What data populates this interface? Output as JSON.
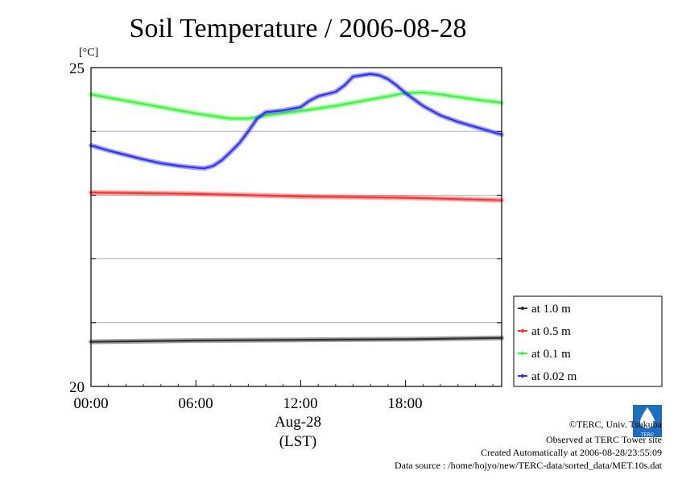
{
  "chart_data": {
    "type": "line",
    "title": "Soil Temperature / 2006-08-28",
    "ylabel": "[°C]",
    "xlabel": "(LST)",
    "date_label": "Aug-28",
    "ylim": [
      20,
      25
    ],
    "xlim_hours": [
      0,
      23.5
    ],
    "y_ticks": [
      "25",
      "20"
    ],
    "y_gridlines": [
      21,
      22,
      23,
      24
    ],
    "x_ticks": [
      {
        "hour": 0,
        "label": "00:00"
      },
      {
        "hour": 6,
        "label": "06:00"
      },
      {
        "hour": 12,
        "label": "12:00"
      },
      {
        "hour": 18,
        "label": "18:00"
      }
    ],
    "grid": true,
    "legend_position": "right",
    "series": [
      {
        "name": "at 1.0 m",
        "color": "#303030",
        "x": [
          0,
          6,
          12,
          18,
          23.5
        ],
        "y": [
          20.7,
          20.72,
          20.73,
          20.74,
          20.76
        ]
      },
      {
        "name": "at 0.5 m",
        "color": "#ff3030",
        "x": [
          0,
          3,
          6,
          9,
          12,
          15,
          18,
          21,
          23.5
        ],
        "y": [
          23.04,
          23.03,
          23.02,
          23.0,
          22.98,
          22.97,
          22.96,
          22.94,
          22.92
        ]
      },
      {
        "name": "at 0.1 m",
        "color": "#30ff30",
        "x": [
          0,
          2,
          4,
          6,
          8,
          9,
          10,
          12,
          14,
          16,
          18,
          19,
          20,
          22,
          23.5
        ],
        "y": [
          24.58,
          24.48,
          24.38,
          24.28,
          24.2,
          24.2,
          24.25,
          24.32,
          24.4,
          24.5,
          24.6,
          24.61,
          24.58,
          24.5,
          24.45
        ]
      },
      {
        "name": "at 0.02 m",
        "color": "#3030ff",
        "x": [
          0,
          1,
          2,
          3,
          4,
          5,
          6,
          6.5,
          7,
          7.5,
          8,
          8.5,
          9,
          9.5,
          10,
          11,
          12,
          12.5,
          13,
          14,
          14.5,
          15,
          15.5,
          16,
          16.5,
          17,
          17.5,
          18,
          19,
          20,
          21,
          22,
          23,
          23.5
        ],
        "y": [
          23.78,
          23.7,
          23.63,
          23.56,
          23.5,
          23.46,
          23.43,
          23.42,
          23.46,
          23.55,
          23.68,
          23.82,
          24.0,
          24.2,
          24.3,
          24.33,
          24.38,
          24.48,
          24.55,
          24.62,
          24.72,
          24.86,
          24.88,
          24.9,
          24.88,
          24.82,
          24.72,
          24.6,
          24.4,
          24.25,
          24.15,
          24.07,
          23.99,
          23.95
        ]
      }
    ]
  },
  "credits": {
    "copyright": "©TERC, Univ. Tsukuba",
    "observed": "Observed at TERC Tower site",
    "created": "Created Automatically at 2006-08-28/23:55:09",
    "source": "Data source : /home/hojyo/new/TERC-data/sorted_data/MET.10s.dat",
    "logo_text": "TERC"
  }
}
